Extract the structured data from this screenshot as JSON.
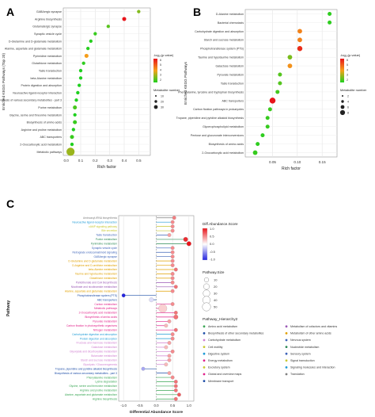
{
  "panels": {
    "a": "A",
    "b": "B",
    "c": "C"
  },
  "chart_data": [
    {
      "type": "scatter",
      "panel": "A",
      "ylabel": "Enriched KEGG Pathways (Top 20)",
      "xlabel": "Rich factor",
      "xlim": [
        -0.02,
        0.58
      ],
      "xticks": [
        "0.0",
        "0.1",
        "0.2",
        "0.3",
        "0.4",
        "0.5"
      ],
      "xtick_values": [
        0.0,
        0.1,
        0.2,
        0.3,
        0.4,
        0.5
      ],
      "categories": [
        "GABAergic synapse",
        "Arginine biosynthesis",
        "Glutamatergic synapse",
        "Synaptic vesicle cycle",
        "D-Glutamine and D-glutamate metabolism",
        "Alanine, aspartate and glutamate metabolism",
        "Pyrimidine metabolism",
        "Glutathione metabolism",
        "Taste transduction",
        "beta-Alanine metabolism",
        "Protein digestion and absorption",
        "Neuroactive ligand-receptor interaction",
        "Biosynthesis of various secondary metabolites - part 3",
        "Purine metabolism",
        "Glycine, serine and threonine metabolism",
        "Biosynthesis of amino acids",
        "Arginine and proline metabolism",
        "ABC transporters",
        "2-Oxocarboxylic acid metabolism",
        "Metabolic pathways"
      ],
      "x": [
        0.5,
        0.4,
        0.29,
        0.2,
        0.17,
        0.15,
        0.14,
        0.12,
        0.1,
        0.1,
        0.09,
        0.08,
        0.07,
        0.06,
        0.06,
        0.06,
        0.05,
        0.04,
        0.04,
        0.03
      ],
      "size": [
        1,
        2,
        1,
        1,
        1,
        1,
        2,
        1,
        1,
        1,
        1,
        1,
        1,
        2,
        1,
        2,
        1,
        2,
        1,
        20
      ],
      "pvalue_log": [
        2.5,
        6.5,
        2.0,
        1.6,
        1.4,
        1.4,
        4.0,
        1.5,
        1.3,
        1.3,
        1.3,
        1.3,
        1.3,
        1.8,
        1.3,
        1.6,
        1.3,
        1.6,
        1.3,
        2.8
      ],
      "color_legend": {
        "title": "-log₁₀(p.value)",
        "ticks": [
          "6",
          "5",
          "4",
          "3",
          "2"
        ],
        "range": [
          1.3,
          6.5
        ]
      },
      "size_legend": {
        "title": "Metabolite number",
        "items": [
          "10",
          "20",
          "30"
        ]
      }
    },
    {
      "type": "scatter",
      "panel": "B",
      "ylabel": "Enriched KEGG Pathways",
      "xlabel": "Rich factor",
      "xlim": [
        -0.005,
        0.18
      ],
      "xticks": [
        "0.05",
        "0.10",
        "0.15"
      ],
      "xtick_values": [
        0.05,
        0.1,
        0.15
      ],
      "categories": [
        "D-Alanine metabolism",
        "Bacterial chemotaxis",
        "Carbohydrate digestion and absorption",
        "Starch and sucrose metabolism",
        "Phosphotransferase system (PTS)",
        "Taurine and hypotaurine metabolism",
        "Galactose metabolism",
        "Pyruvate metabolism",
        "Taste transduction",
        "Phenylalanine, tyrosine and tryptophan biosynthesis",
        "ABC transporters",
        "Carbon fixation pathways in prokaryotes",
        "Tropane, piperidine and pyridine alkaloid biosynthesis",
        "Glycerophospholipid metabolism",
        "Pentose and glucuronate interconversions",
        "Biosynthesis of amino acids",
        "2-Oxocarboxylic acid metabolism"
      ],
      "x": [
        0.165,
        0.165,
        0.105,
        0.105,
        0.105,
        0.085,
        0.085,
        0.065,
        0.065,
        0.06,
        0.05,
        0.045,
        0.04,
        0.04,
        0.03,
        0.02,
        0.015
      ],
      "size": [
        1,
        1,
        2,
        2,
        3,
        2,
        2,
        1,
        1,
        1,
        5,
        1,
        1,
        1,
        1,
        1,
        2
      ],
      "pvalue_log": [
        1.5,
        1.5,
        4.8,
        4.8,
        6.5,
        2.5,
        4.5,
        2.0,
        2.0,
        1.8,
        7.0,
        1.7,
        1.6,
        1.6,
        1.5,
        1.5,
        1.6
      ],
      "color_legend": {
        "title": "-log₁₀(p.value)",
        "ticks": [
          "6",
          "5",
          "4",
          "3",
          "2"
        ],
        "range": [
          1.3,
          7.0
        ]
      },
      "size_legend": {
        "title": "Metabolite number",
        "items": [
          "2",
          "4",
          "6",
          "8"
        ]
      }
    },
    {
      "type": "lollipop",
      "panel": "C",
      "ylabel": "Pathway",
      "xlabel": "Differential Abundance Score",
      "xlim": [
        -1.15,
        1.15
      ],
      "xticks": [
        "-1.0",
        "-0.5",
        "0.0",
        "0.5",
        "1.0"
      ],
      "xtick_values": [
        -1.0,
        -0.5,
        0.0,
        0.5,
        1.0
      ],
      "categories": [
        "Aminoacyl-tRNA biosynthesis",
        "Neuroactive ligand-receptor interaction",
        "cAMP signaling pathway",
        "Bile secretion",
        "Taste transduction",
        "Purine metabolism",
        "Pyrimidine metabolism",
        "Synaptic vesicle cycle",
        "Retrograde endocannabinoid signaling",
        "GABAergic synapse",
        "D-Glutamine and D-glutamate metabolism",
        "D-Arginine and D-ornithine metabolism",
        "beta-Alanine metabolism",
        "Taurine and hypotaurine metabolism",
        "Glutathione metabolism",
        "Pantothenate and CoA biosynthesis",
        "Nicotinate and nicotinamide metabolism",
        "Alanine, aspartate and glutamate metabolism",
        "Phosphotransferase system (PTS)",
        "ABC transporters",
        "Carbon metabolism",
        "Metabolic pathways",
        "2-Oxocarboxylic acid metabolism",
        "Biosynthesis of amino acids",
        "Pyruvate metabolism",
        "Carbon fixation in photosynthetic organisms",
        "Nitrogen metabolism",
        "Carbohydrate digestion and absorption",
        "Protein digestion and absorption",
        "Fructose and mannose metabolism",
        "Galactose metabolism",
        "Glyoxylate and dicarboxylate metabolism",
        "Butanoate metabolism",
        "Starch and sucrose metabolism",
        "Glycolysis / Gluconeogenesis",
        "Tropane, piperidine and pyridine alkaloid biosynthesis",
        "Biosynthesis of various secondary metabolites - part 3",
        "Phenylalanine metabolism",
        "Lysine degradation",
        "Glycine, serine and threonine metabolism",
        "Arginine and proline metabolism",
        "Alanine, aspartate and glutamate metabolism",
        "Arginine biosynthesis"
      ],
      "category_colors": [
        "#7f7f7f",
        "#1f9bd6",
        "#c9c933",
        "#c9c933",
        "#3d63b8",
        "#2e8b57",
        "#2e8b57",
        "#3d63b8",
        "#3d63b8",
        "#3d63b8",
        "#e0a000",
        "#e0a000",
        "#e0a000",
        "#e0a000",
        "#e0a000",
        "#9b59b6",
        "#9b59b6",
        "#e0a000",
        "#1f4fa8",
        "#1f4fa8",
        "#e0218a",
        "#e0218a",
        "#e0218a",
        "#e0218a",
        "#e0218a",
        "#e0218a",
        "#e0218a",
        "#1f9bd6",
        "#1f9bd6",
        "#d080d0",
        "#d080d0",
        "#d080d0",
        "#d080d0",
        "#d080d0",
        "#d080d0",
        "#1f4fa8",
        "#1f4fa8",
        "#3aa655",
        "#3aa655",
        "#3aa655",
        "#3aa655",
        "#3aa655",
        "#3aa655"
      ],
      "values": [
        0.55,
        0.5,
        0.5,
        0.5,
        0.4,
        0.9,
        1.0,
        0.5,
        0.5,
        0.5,
        0.5,
        0.5,
        0.6,
        0.5,
        0.5,
        0.5,
        0.6,
        0.5,
        -1.0,
        -0.15,
        0.5,
        0.2,
        0.6,
        0.6,
        0.4,
        0.3,
        0.6,
        0.5,
        0.5,
        0.4,
        0.3,
        0.5,
        0.4,
        0.4,
        0.3,
        -0.4,
        0.4,
        0.5,
        0.6,
        0.6,
        0.6,
        0.7,
        0.6
      ],
      "pathway_size": [
        5,
        5,
        5,
        5,
        5,
        10,
        10,
        5,
        5,
        5,
        5,
        5,
        5,
        5,
        5,
        5,
        5,
        5,
        5,
        10,
        5,
        50,
        5,
        10,
        5,
        5,
        5,
        5,
        5,
        5,
        5,
        5,
        5,
        5,
        5,
        5,
        5,
        5,
        5,
        5,
        5,
        5,
        5
      ],
      "color_legend": {
        "title": "Diff.Abundance.Score",
        "ticks": [
          "1.0",
          "0.5",
          "0.0",
          "-0.5",
          "-1.0"
        ],
        "range": [
          -1.0,
          1.0
        ]
      },
      "size_legend": {
        "title": "Pathway.Size",
        "items": [
          "10",
          "20",
          "30",
          "40",
          "50"
        ],
        "values": [
          10,
          20,
          30,
          40,
          50
        ]
      },
      "hierarchy_legend": {
        "title": "Pathway_Hierarchy2",
        "items": [
          {
            "label": "Amino acid metabolism",
            "color": "#3aa655"
          },
          {
            "label": "Biosynthesis of other secondary metabolites",
            "color": "#1f4fa8"
          },
          {
            "label": "Carbohydrate metabolism",
            "color": "#d080d0"
          },
          {
            "label": "Cell motility",
            "color": "#c9c933"
          },
          {
            "label": "Digestive system",
            "color": "#1f9bd6"
          },
          {
            "label": "Energy metabolism",
            "color": "#e0218a"
          },
          {
            "label": "Excretory system",
            "color": "#c9c933"
          },
          {
            "label": "Global and overview maps",
            "color": "#e0218a"
          },
          {
            "label": "Membrane transport",
            "color": "#1f4fa8"
          },
          {
            "label": "Metabolism of cofactors and vitamins",
            "color": "#9b59b6"
          },
          {
            "label": "Metabolism of other amino acids",
            "color": "#e0a000"
          },
          {
            "label": "Nervous system",
            "color": "#3d63b8"
          },
          {
            "label": "Nucleotide metabolism",
            "color": "#2e8b57"
          },
          {
            "label": "Sensory system",
            "color": "#3d63b8"
          },
          {
            "label": "Signal transduction",
            "color": "#c9c933"
          },
          {
            "label": "Signaling molecules and interaction",
            "color": "#1f9bd6"
          },
          {
            "label": "Translation",
            "color": "#7f7f7f"
          }
        ]
      }
    }
  ]
}
